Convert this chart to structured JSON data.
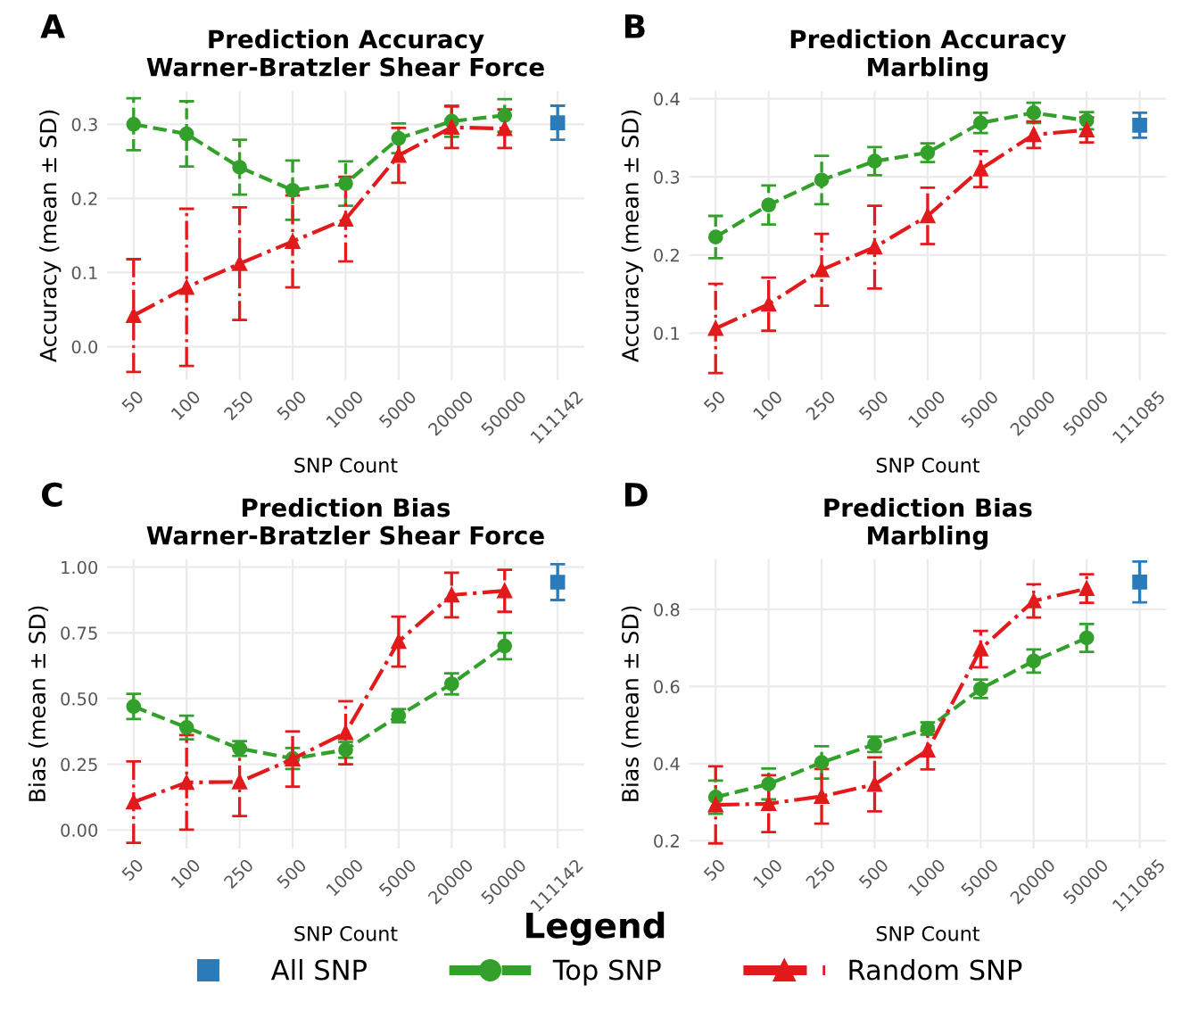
{
  "chart_data": [
    {
      "type": "line",
      "title": "Prediction Accuracy",
      "subtitle": "Warner-Bratzler Shear Force",
      "annotations": [
        "A"
      ],
      "xlabel": "SNP Count",
      "ylabel": "Accuracy (mean ± SD)",
      "categories": [
        "50",
        "100",
        "250",
        "500",
        "1000",
        "5000",
        "20000",
        "50000",
        "111142"
      ],
      "ylim": [
        -0.045,
        0.345
      ],
      "yticks": [
        {
          "value": 0,
          "label": "0.0"
        },
        0.1,
        0.2,
        0.3
      ],
      "grid": true,
      "legend": "bottom",
      "legend_title": "Legend",
      "series": [
        {
          "name": "All SNP",
          "color": "#2b7bba",
          "type": "scatter",
          "marker": "square",
          "values": [
            null,
            null,
            null,
            null,
            null,
            null,
            null,
            null,
            0.302
          ],
          "errors": [
            null,
            null,
            null,
            null,
            null,
            null,
            null,
            null,
            0.023
          ]
        },
        {
          "name": "Top SNP",
          "color": "#33a02c",
          "marker": "circle",
          "line_style": "dashed",
          "values": [
            0.3,
            0.287,
            0.242,
            0.211,
            0.22,
            0.281,
            0.304,
            0.312,
            null
          ],
          "errors": [
            0.035,
            0.044,
            0.037,
            0.04,
            0.03,
            0.02,
            0.021,
            0.022,
            null
          ]
        },
        {
          "name": "Random SNP",
          "color": "#e31a1c",
          "marker": "triangle",
          "line_style": "dashdot",
          "values": [
            0.042,
            0.08,
            0.112,
            0.142,
            0.172,
            0.258,
            0.296,
            0.294,
            null
          ],
          "errors": [
            0.076,
            0.106,
            0.076,
            0.062,
            0.057,
            0.037,
            0.028,
            0.026,
            null
          ]
        }
      ]
    },
    {
      "type": "line",
      "title": "Prediction Accuracy",
      "subtitle": "Marbling",
      "annotations": [
        "B"
      ],
      "xlabel": "SNP Count",
      "ylabel": "Accuracy (mean ± SD)",
      "categories": [
        "50",
        "100",
        "250",
        "500",
        "1000",
        "5000",
        "20000",
        "50000",
        "111085"
      ],
      "ylim": [
        0.04,
        0.41
      ],
      "yticks": [
        0.1,
        0.2,
        0.3,
        0.4
      ],
      "grid": true,
      "series": [
        {
          "color": "#2b7bba",
          "type": "scatter",
          "marker": "square",
          "values": [
            null,
            null,
            null,
            null,
            null,
            null,
            null,
            null,
            0.366
          ],
          "errors": [
            null,
            null,
            null,
            null,
            null,
            null,
            null,
            null,
            0.016
          ]
        },
        {
          "color": "#33a02c",
          "marker": "circle",
          "line_style": "dashed",
          "values": [
            0.223,
            0.264,
            0.296,
            0.32,
            0.331,
            0.369,
            0.382,
            0.372,
            null
          ],
          "errors": [
            0.027,
            0.025,
            0.031,
            0.018,
            0.012,
            0.013,
            0.013,
            0.011,
            null
          ]
        },
        {
          "color": "#e31a1c",
          "marker": "triangle",
          "line_style": "dashdot",
          "values": [
            0.106,
            0.137,
            0.181,
            0.21,
            0.25,
            0.31,
            0.354,
            0.36,
            null
          ],
          "errors": [
            0.057,
            0.034,
            0.046,
            0.053,
            0.036,
            0.023,
            0.017,
            0.016,
            null
          ]
        }
      ]
    },
    {
      "type": "line",
      "title": "Prediction Bias",
      "subtitle": "Warner-Bratzler Shear Force",
      "annotations": [
        "C"
      ],
      "xlabel": "SNP Count",
      "ylabel": "Bias (mean ± SD)",
      "categories": [
        "50",
        "100",
        "250",
        "500",
        "1000",
        "5000",
        "20000",
        "50000",
        "111142"
      ],
      "ylim": [
        -0.07,
        1.03
      ],
      "yticks": [
        {
          "value": 0,
          "label": "0.00"
        },
        0.25,
        {
          "value": 0.5,
          "label": "0.50"
        },
        0.75,
        {
          "value": 1,
          "label": "1.00"
        }
      ],
      "grid": true,
      "series": [
        {
          "color": "#2b7bba",
          "type": "scatter",
          "marker": "square",
          "values": [
            null,
            null,
            null,
            null,
            null,
            null,
            null,
            null,
            0.943
          ],
          "errors": [
            null,
            null,
            null,
            null,
            null,
            null,
            null,
            null,
            0.068
          ]
        },
        {
          "color": "#33a02c",
          "marker": "circle",
          "line_style": "dashed",
          "values": [
            0.47,
            0.39,
            0.31,
            0.272,
            0.305,
            0.435,
            0.556,
            0.7,
            null
          ],
          "errors": [
            0.048,
            0.045,
            0.028,
            0.04,
            0.03,
            0.025,
            0.04,
            0.05,
            null
          ]
        },
        {
          "color": "#e31a1c",
          "marker": "triangle",
          "line_style": "dashdot",
          "values": [
            0.106,
            0.181,
            0.183,
            0.27,
            0.37,
            0.717,
            0.894,
            0.91,
            null
          ],
          "errors": [
            0.155,
            0.18,
            0.13,
            0.105,
            0.12,
            0.095,
            0.085,
            0.08,
            null
          ]
        }
      ]
    },
    {
      "type": "line",
      "title": "Prediction Bias",
      "subtitle": "Marbling",
      "annotations": [
        "D"
      ],
      "xlabel": "SNP Count",
      "ylabel": "Bias (mean ± SD)",
      "categories": [
        "50",
        "100",
        "250",
        "500",
        "1000",
        "5000",
        "20000",
        "50000",
        "111085"
      ],
      "ylim": [
        0.18,
        0.93
      ],
      "yticks": [
        0.2,
        0.4,
        0.6,
        0.8
      ],
      "grid": true,
      "series": [
        {
          "color": "#2b7bba",
          "type": "scatter",
          "marker": "square",
          "values": [
            null,
            null,
            null,
            null,
            null,
            null,
            null,
            null,
            0.871
          ],
          "errors": [
            null,
            null,
            null,
            null,
            null,
            null,
            null,
            null,
            0.053
          ]
        },
        {
          "color": "#33a02c",
          "marker": "circle",
          "line_style": "dashed",
          "values": [
            0.313,
            0.347,
            0.403,
            0.45,
            0.491,
            0.594,
            0.666,
            0.726,
            null
          ],
          "errors": [
            0.043,
            0.04,
            0.042,
            0.02,
            0.016,
            0.024,
            0.03,
            0.036,
            null
          ]
        },
        {
          "color": "#e31a1c",
          "marker": "triangle",
          "line_style": "dashdot",
          "values": [
            0.293,
            0.296,
            0.315,
            0.346,
            0.435,
            0.697,
            0.822,
            0.854,
            null
          ],
          "errors": [
            0.1,
            0.074,
            0.071,
            0.07,
            0.05,
            0.047,
            0.043,
            0.037,
            null
          ]
        }
      ]
    }
  ]
}
